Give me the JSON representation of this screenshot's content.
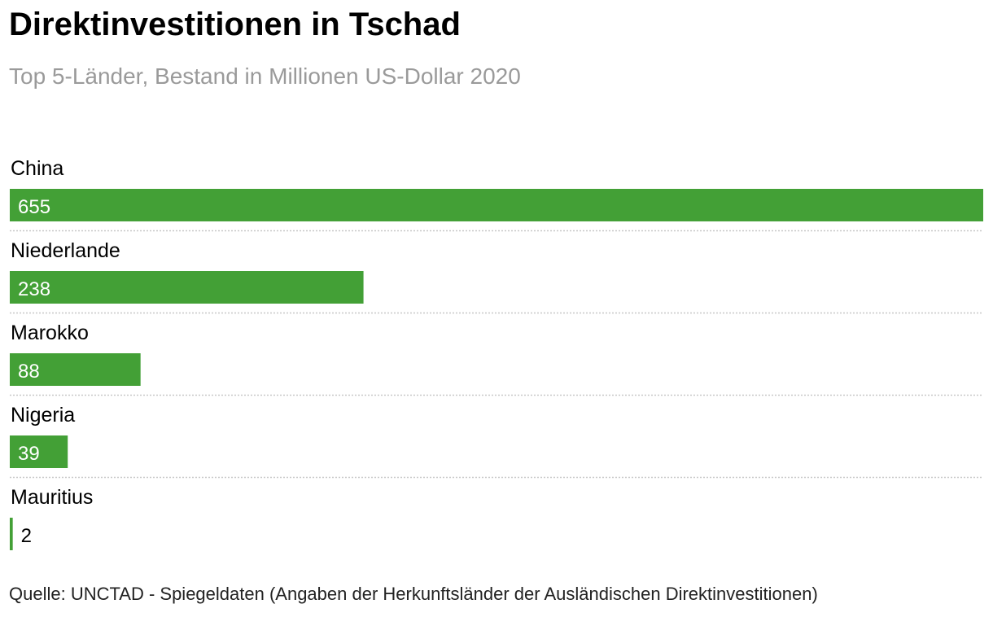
{
  "chart_data": {
    "type": "bar",
    "orientation": "horizontal",
    "title": "Direktinvestitionen in Tschad",
    "subtitle": "Top 5-Länder, Bestand in Millionen US-Dollar 2020",
    "categories": [
      "China",
      "Niederlande",
      "Marokko",
      "Nigeria",
      "Mauritius"
    ],
    "values": [
      655,
      238,
      88,
      39,
      2
    ],
    "value_labels": [
      "655",
      "238",
      "88",
      "39",
      "2"
    ],
    "xlim": [
      0,
      655
    ],
    "grid": false,
    "legend": "none",
    "colors": {
      "bar": "#43a036",
      "label_inside": "#ffffff",
      "label_outside": "#000000",
      "separator": "#c8c8c8"
    }
  },
  "source": "Quelle: UNCTAD - Spiegeldaten (Angaben der Herkunftsländer der Ausländischen Direktinvestitionen)"
}
